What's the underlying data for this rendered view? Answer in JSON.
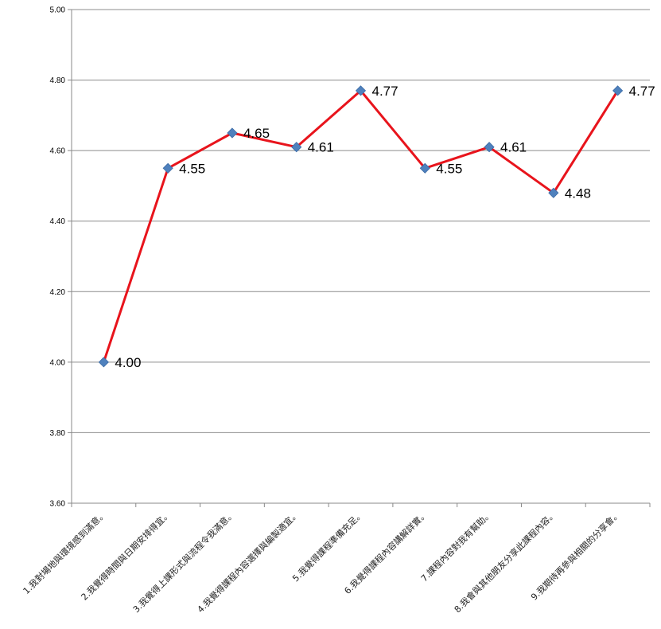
{
  "chart_data": {
    "type": "line",
    "title": "",
    "xlabel": "",
    "ylabel": "",
    "ylim": [
      3.6,
      5.0
    ],
    "yticks": [
      "5.00",
      "4.80",
      "4.60",
      "4.40",
      "4.20",
      "4.00",
      "3.80",
      "3.60"
    ],
    "grid": true,
    "legend": "none",
    "categories": [
      "1.我對場地與環境感到滿意。",
      "2.我覺得時間與日期安排得宜。",
      "3.我覺得上課形式與流程令我滿意。",
      "4.我覺得課程內容選擇與編製適宜。",
      "5.我覺得課程準備充足。",
      "6.我覺得課程內容講解詳實。",
      "7.課程內容對我有幫助。",
      "8.我會與其他朋友分享此課程內容。",
      "9.我期待再參與相關的分享會。"
    ],
    "series": [
      {
        "values": [
          4.0,
          4.55,
          4.65,
          4.61,
          4.77,
          4.55,
          4.61,
          4.48,
          4.77
        ],
        "labels": [
          "4.00",
          "4.55",
          "4.65",
          "4.61",
          "4.77",
          "4.55",
          "4.61",
          "4.48",
          "4.77"
        ],
        "line_color": "#e8141c",
        "marker_color": "#4f81bd"
      }
    ]
  }
}
